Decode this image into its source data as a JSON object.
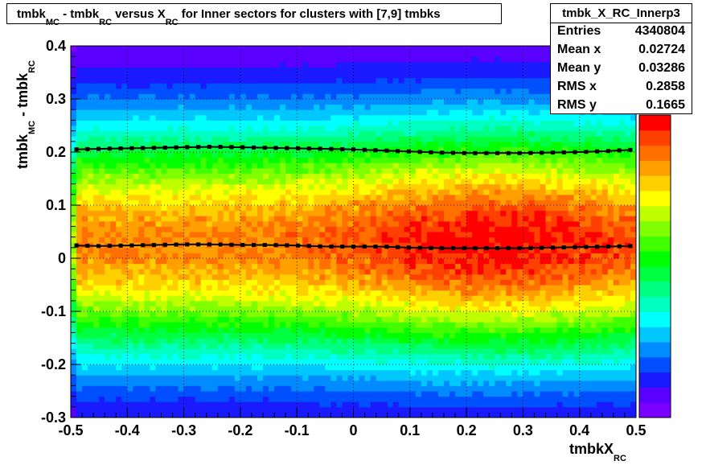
{
  "title": {
    "parts": [
      "tmbk",
      "MC",
      " - tmbk",
      "RC",
      " versus X",
      "RC",
      " for Inner sectors for clusters with [7,9] tmbks"
    ]
  },
  "stats_box": {
    "name": "tmbk_X_RC_Innerp3",
    "rows": [
      {
        "label": "Entries",
        "value": "4340804"
      },
      {
        "label": "Mean x",
        "value": "0.02724"
      },
      {
        "label": "Mean y",
        "value": "0.03286"
      },
      {
        "label": "RMS x",
        "value": "0.2858"
      },
      {
        "label": "RMS y",
        "value": "0.1665"
      }
    ]
  },
  "colors": {
    "palette": [
      "#7a00ff",
      "#5a00ff",
      "#1a1aff",
      "#0050ff",
      "#008cff",
      "#00c8ff",
      "#00ffff",
      "#00ffc0",
      "#00ff80",
      "#00ff40",
      "#00ff00",
      "#40ff00",
      "#80ff00",
      "#c0ff00",
      "#ffff00",
      "#ffd000",
      "#ffa000",
      "#ff7000",
      "#ff4000",
      "#ff0000"
    ],
    "profile": "#000000"
  },
  "chart_data": {
    "type": "heatmap",
    "title": "tmbk_MC - tmbk_RC versus X_RC for Inner sectors for clusters with [7,9] tmbks",
    "xlabel": "tmbkX_RC",
    "ylabel": "tmbk_MC - tmbk_RC",
    "xlim": [
      -0.5,
      0.5
    ],
    "ylim": [
      -0.3,
      0.4
    ],
    "x_ticks": [
      "-0.5",
      "-0.4",
      "-0.3",
      "-0.2",
      "-0.1",
      "0",
      "0.1",
      "0.2",
      "0.3",
      "0.4",
      "0.5"
    ],
    "y_ticks": [
      "-0.3",
      "-0.2",
      "-0.1",
      "0",
      "0.1",
      "0.2",
      "0.3",
      "0.4"
    ],
    "z_axis_exponent_glimpse": "3",
    "grid": true,
    "mean_profile": {
      "x": [
        -0.49,
        -0.45,
        -0.4,
        -0.35,
        -0.3,
        -0.25,
        -0.2,
        -0.15,
        -0.1,
        -0.05,
        0.0,
        0.05,
        0.1,
        0.15,
        0.2,
        0.25,
        0.3,
        0.35,
        0.4,
        0.45,
        0.49
      ],
      "y": [
        0.024,
        0.023,
        0.024,
        0.025,
        0.026,
        0.026,
        0.025,
        0.025,
        0.024,
        0.022,
        0.022,
        0.022,
        0.02,
        0.019,
        0.019,
        0.019,
        0.019,
        0.02,
        0.021,
        0.022,
        0.023
      ]
    },
    "upper_profile": {
      "x": [
        -0.49,
        -0.45,
        -0.4,
        -0.35,
        -0.3,
        -0.25,
        -0.2,
        -0.15,
        -0.1,
        -0.05,
        0.0,
        0.05,
        0.1,
        0.15,
        0.2,
        0.25,
        0.3,
        0.35,
        0.4,
        0.45,
        0.49
      ],
      "y": [
        0.205,
        0.206,
        0.207,
        0.208,
        0.209,
        0.21,
        0.209,
        0.208,
        0.207,
        0.206,
        0.205,
        0.203,
        0.201,
        0.199,
        0.198,
        0.198,
        0.198,
        0.199,
        0.2,
        0.202,
        0.204
      ]
    },
    "density_model": {
      "peak_y": 0.03,
      "sigma_y": 0.16,
      "peak_x": 0.25
    }
  }
}
